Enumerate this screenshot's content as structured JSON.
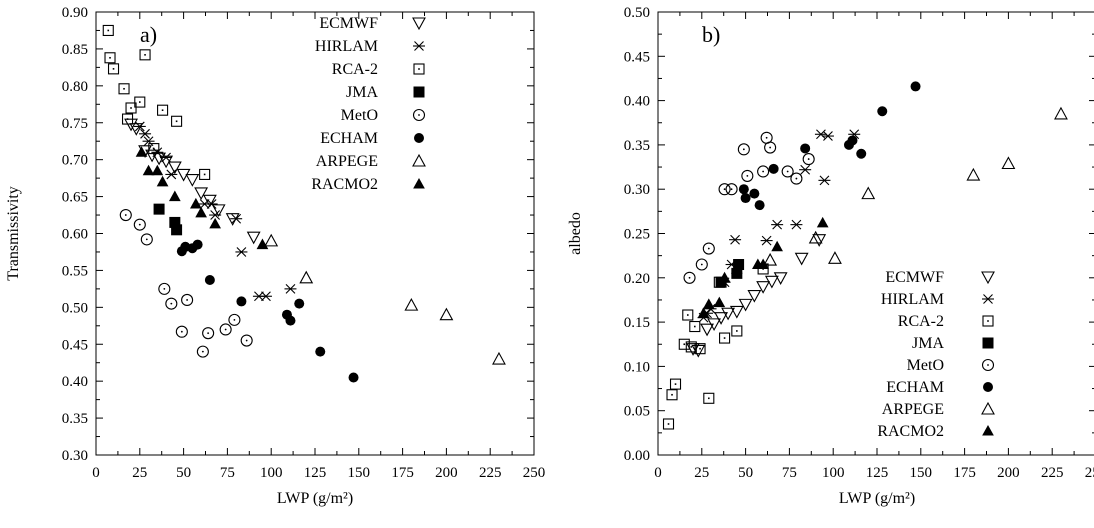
{
  "chart_data": [
    {
      "type": "scatter",
      "panel_label": "a)",
      "xlabel": "LWP (g/m²)",
      "ylabel": "Transmissivity",
      "xlim": [
        0,
        250
      ],
      "ylim": [
        0.3,
        0.9
      ],
      "xticks": [
        "0",
        "25",
        "50",
        "75",
        "100",
        "125",
        "150",
        "175",
        "200",
        "225",
        "250"
      ],
      "yticks": [
        "0.30",
        "0.35",
        "0.40",
        "0.45",
        "0.50",
        "0.55",
        "0.60",
        "0.65",
        "0.70",
        "0.75",
        "0.80",
        "0.85",
        "0.90"
      ],
      "legend_position": "top-right",
      "grid": false,
      "series": [
        {
          "name": "ECMWF",
          "marker": "triangle-down-open",
          "points": [
            [
              20,
              0.748
            ],
            [
              23,
              0.742
            ],
            [
              28,
              0.712
            ],
            [
              32,
              0.706
            ],
            [
              36,
              0.702
            ],
            [
              40,
              0.698
            ],
            [
              45,
              0.69
            ],
            [
              50,
              0.68
            ],
            [
              55,
              0.673
            ],
            [
              60,
              0.655
            ],
            [
              65,
              0.645
            ],
            [
              70,
              0.632
            ],
            [
              78,
              0.62
            ],
            [
              90,
              0.595
            ]
          ]
        },
        {
          "name": "HIRLAM",
          "marker": "asterisk",
          "points": [
            [
              25,
              0.745
            ],
            [
              28,
              0.735
            ],
            [
              30,
              0.725
            ],
            [
              35,
              0.71
            ],
            [
              40,
              0.703
            ],
            [
              43,
              0.68
            ],
            [
              62,
              0.64
            ],
            [
              66,
              0.64
            ],
            [
              68,
              0.625
            ],
            [
              80,
              0.62
            ],
            [
              83,
              0.575
            ],
            [
              93,
              0.515
            ],
            [
              97,
              0.515
            ],
            [
              111,
              0.525
            ]
          ]
        },
        {
          "name": "RCA-2",
          "marker": "square-open",
          "points": [
            [
              7,
              0.875
            ],
            [
              8,
              0.838
            ],
            [
              10,
              0.823
            ],
            [
              16,
              0.796
            ],
            [
              18,
              0.755
            ],
            [
              20,
              0.77
            ],
            [
              25,
              0.778
            ],
            [
              28,
              0.842
            ],
            [
              33,
              0.715
            ],
            [
              38,
              0.767
            ],
            [
              46,
              0.752
            ],
            [
              62,
              0.68
            ]
          ]
        },
        {
          "name": "JMA",
          "marker": "square-filled",
          "points": [
            [
              36,
              0.633
            ],
            [
              45,
              0.615
            ],
            [
              46,
              0.605
            ]
          ]
        },
        {
          "name": "MetO",
          "marker": "circle-open",
          "points": [
            [
              17,
              0.625
            ],
            [
              25,
              0.612
            ],
            [
              29,
              0.592
            ],
            [
              39,
              0.525
            ],
            [
              43,
              0.505
            ],
            [
              49,
              0.467
            ],
            [
              52,
              0.51
            ],
            [
              61,
              0.44
            ],
            [
              64,
              0.465
            ],
            [
              74,
              0.47
            ],
            [
              79,
              0.483
            ],
            [
              86,
              0.455
            ]
          ]
        },
        {
          "name": "ECHAM",
          "marker": "circle-filled",
          "points": [
            [
              49,
              0.576
            ],
            [
              51,
              0.582
            ],
            [
              55,
              0.58
            ],
            [
              58,
              0.585
            ],
            [
              65,
              0.537
            ],
            [
              83,
              0.508
            ],
            [
              109,
              0.49
            ],
            [
              111,
              0.482
            ],
            [
              116,
              0.505
            ],
            [
              128,
              0.44
            ],
            [
              147,
              0.405
            ]
          ]
        },
        {
          "name": "ARPEGE",
          "marker": "triangle-up-open",
          "points": [
            [
              100,
              0.59
            ],
            [
              120,
              0.54
            ],
            [
              180,
              0.503
            ],
            [
              200,
              0.49
            ],
            [
              230,
              0.43
            ]
          ]
        },
        {
          "name": "RACMO2",
          "marker": "triangle-up-filled",
          "points": [
            [
              26,
              0.71
            ],
            [
              30,
              0.685
            ],
            [
              35,
              0.685
            ],
            [
              38,
              0.67
            ],
            [
              45,
              0.65
            ],
            [
              57,
              0.64
            ],
            [
              60,
              0.628
            ],
            [
              68,
              0.613
            ],
            [
              95,
              0.585
            ]
          ]
        }
      ]
    },
    {
      "type": "scatter",
      "panel_label": "b)",
      "xlabel": "LWP (g/m²)",
      "ylabel": "albedo",
      "xlim": [
        0,
        250
      ],
      "ylim": [
        0.0,
        0.5
      ],
      "xticks": [
        "0",
        "25",
        "50",
        "75",
        "100",
        "125",
        "150",
        "175",
        "200",
        "225",
        "250"
      ],
      "yticks": [
        "0.00",
        "0.05",
        "0.10",
        "0.15",
        "0.20",
        "0.25",
        "0.30",
        "0.35",
        "0.40",
        "0.45",
        "0.50"
      ],
      "legend_position": "bottom-right",
      "grid": false,
      "series": [
        {
          "name": "ECMWF",
          "marker": "triangle-down-open",
          "points": [
            [
              20,
              0.12
            ],
            [
              23,
              0.118
            ],
            [
              28,
              0.142
            ],
            [
              32,
              0.148
            ],
            [
              36,
              0.155
            ],
            [
              40,
              0.16
            ],
            [
              45,
              0.162
            ],
            [
              50,
              0.17
            ],
            [
              55,
              0.18
            ],
            [
              60,
              0.19
            ],
            [
              65,
              0.196
            ],
            [
              70,
              0.2
            ],
            [
              82,
              0.222
            ],
            [
              92,
              0.243
            ]
          ]
        },
        {
          "name": "HIRLAM",
          "marker": "asterisk",
          "points": [
            [
              26,
              0.155
            ],
            [
              28,
              0.16
            ],
            [
              30,
              0.165
            ],
            [
              38,
              0.195
            ],
            [
              42,
              0.215
            ],
            [
              44,
              0.243
            ],
            [
              62,
              0.242
            ],
            [
              68,
              0.26
            ],
            [
              79,
              0.26
            ],
            [
              84,
              0.322
            ],
            [
              93,
              0.362
            ],
            [
              95,
              0.31
            ],
            [
              97,
              0.36
            ],
            [
              112,
              0.362
            ]
          ]
        },
        {
          "name": "RCA-2",
          "marker": "square-open",
          "points": [
            [
              6,
              0.035
            ],
            [
              8,
              0.068
            ],
            [
              10,
              0.08
            ],
            [
              15,
              0.125
            ],
            [
              17,
              0.158
            ],
            [
              19,
              0.122
            ],
            [
              21,
              0.145
            ],
            [
              24,
              0.12
            ],
            [
              29,
              0.064
            ],
            [
              35,
              0.195
            ],
            [
              38,
              0.132
            ],
            [
              45,
              0.14
            ],
            [
              60,
              0.21
            ]
          ]
        },
        {
          "name": "JMA",
          "marker": "square-filled",
          "points": [
            [
              36,
              0.195
            ],
            [
              45,
              0.205
            ],
            [
              46,
              0.215
            ]
          ]
        },
        {
          "name": "MetO",
          "marker": "circle-open",
          "points": [
            [
              18,
              0.2
            ],
            [
              25,
              0.215
            ],
            [
              29,
              0.233
            ],
            [
              38,
              0.3
            ],
            [
              42,
              0.3
            ],
            [
              49,
              0.345
            ],
            [
              51,
              0.315
            ],
            [
              60,
              0.32
            ],
            [
              62,
              0.358
            ],
            [
              64,
              0.347
            ],
            [
              74,
              0.32
            ],
            [
              79,
              0.312
            ],
            [
              86,
              0.334
            ]
          ]
        },
        {
          "name": "ECHAM",
          "marker": "circle-filled",
          "points": [
            [
              49,
              0.3
            ],
            [
              50,
              0.29
            ],
            [
              55,
              0.295
            ],
            [
              58,
              0.282
            ],
            [
              66,
              0.323
            ],
            [
              84,
              0.346
            ],
            [
              109,
              0.35
            ],
            [
              111,
              0.355
            ],
            [
              116,
              0.34
            ],
            [
              128,
              0.388
            ],
            [
              147,
              0.416
            ]
          ]
        },
        {
          "name": "ARPEGE",
          "marker": "triangle-up-open",
          "points": [
            [
              64,
              0.22
            ],
            [
              90,
              0.245
            ],
            [
              101,
              0.222
            ],
            [
              120,
              0.295
            ],
            [
              180,
              0.316
            ],
            [
              200,
              0.329
            ],
            [
              230,
              0.385
            ]
          ]
        },
        {
          "name": "RACMO2",
          "marker": "triangle-up-filled",
          "points": [
            [
              26,
              0.16
            ],
            [
              29,
              0.17
            ],
            [
              35,
              0.172
            ],
            [
              38,
              0.2
            ],
            [
              45,
              0.21
            ],
            [
              57,
              0.215
            ],
            [
              60,
              0.215
            ],
            [
              68,
              0.235
            ],
            [
              94,
              0.262
            ]
          ]
        }
      ]
    }
  ]
}
